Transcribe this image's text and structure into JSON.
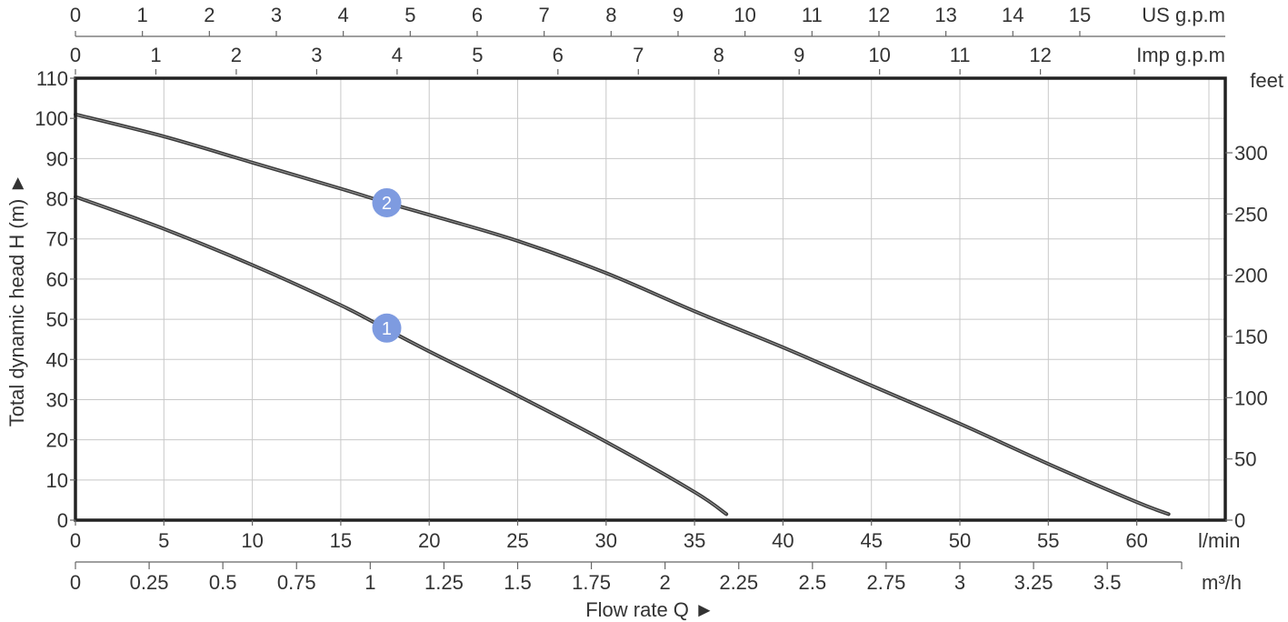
{
  "chart_data": {
    "type": "line",
    "title": "",
    "xlabel": "Flow rate Q ►",
    "ylabel": "Total dynamic head H (m) ►",
    "xlim": [
      0,
      65
    ],
    "ylim": [
      0,
      110
    ],
    "grid": true,
    "x_unit": "l/min",
    "x_ticks": [
      "0",
      "5",
      "10",
      "15",
      "20",
      "25",
      "30",
      "35",
      "40",
      "45",
      "50",
      "55",
      "60"
    ],
    "y_ticks": [
      "0",
      "10",
      "20",
      "30",
      "40",
      "50",
      "60",
      "70",
      "80",
      "90",
      "100",
      "110"
    ],
    "m3h_axis": {
      "unit": "m³/h",
      "ticks": [
        {
          "value": 0,
          "label": "0"
        },
        {
          "value": 0.25,
          "label": "0.25"
        },
        {
          "value": 0.5,
          "label": "0.5"
        },
        {
          "value": 0.75,
          "label": "0.75"
        },
        {
          "value": 1,
          "label": "1"
        },
        {
          "value": 1.25,
          "label": "1.25"
        },
        {
          "value": 1.5,
          "label": "1.5"
        },
        {
          "value": 1.75,
          "label": "1.75"
        },
        {
          "value": 2,
          "label": "2"
        },
        {
          "value": 2.25,
          "label": "2.25"
        },
        {
          "value": 2.5,
          "label": "2.5"
        },
        {
          "value": 2.75,
          "label": "2.75"
        },
        {
          "value": 3,
          "label": "3"
        },
        {
          "value": 3.25,
          "label": "3.25"
        },
        {
          "value": 3.5,
          "label": "3.5"
        }
      ]
    },
    "us_gpm_axis": {
      "unit": "US g.p.m",
      "ticks": [
        "0",
        "1",
        "2",
        "3",
        "4",
        "5",
        "6",
        "7",
        "8",
        "9",
        "10",
        "11",
        "12",
        "13",
        "14",
        "15"
      ]
    },
    "imp_gpm_axis": {
      "unit": "Imp g.p.m",
      "ticks": [
        "0",
        "1",
        "2",
        "3",
        "4",
        "5",
        "6",
        "7",
        "8",
        "9",
        "10",
        "11",
        "12"
      ]
    },
    "feet_axis": {
      "unit": "feet",
      "ticks": [
        "0",
        "50",
        "100",
        "150",
        "200",
        "250",
        "300"
      ]
    },
    "series": [
      {
        "name": "1",
        "x": [
          0,
          5,
          10,
          15,
          17.6,
          20,
          25,
          30,
          35,
          36.8
        ],
        "y": [
          80.5,
          72.5,
          63.5,
          53.5,
          47.5,
          42,
          31,
          19.5,
          7,
          1.5
        ],
        "marker": {
          "x": 17.6,
          "y": 47.8,
          "label": "1"
        }
      },
      {
        "name": "2",
        "x": [
          0,
          5,
          10,
          15,
          17.6,
          20,
          25,
          30,
          35,
          40,
          45,
          50,
          55,
          60,
          61.8
        ],
        "y": [
          101,
          95.5,
          89,
          82.5,
          79,
          76,
          69.5,
          61.5,
          52,
          43,
          33.5,
          24,
          14,
          4.5,
          1.5
        ],
        "marker": {
          "x": 17.6,
          "y": 79,
          "label": "2"
        }
      }
    ]
  }
}
